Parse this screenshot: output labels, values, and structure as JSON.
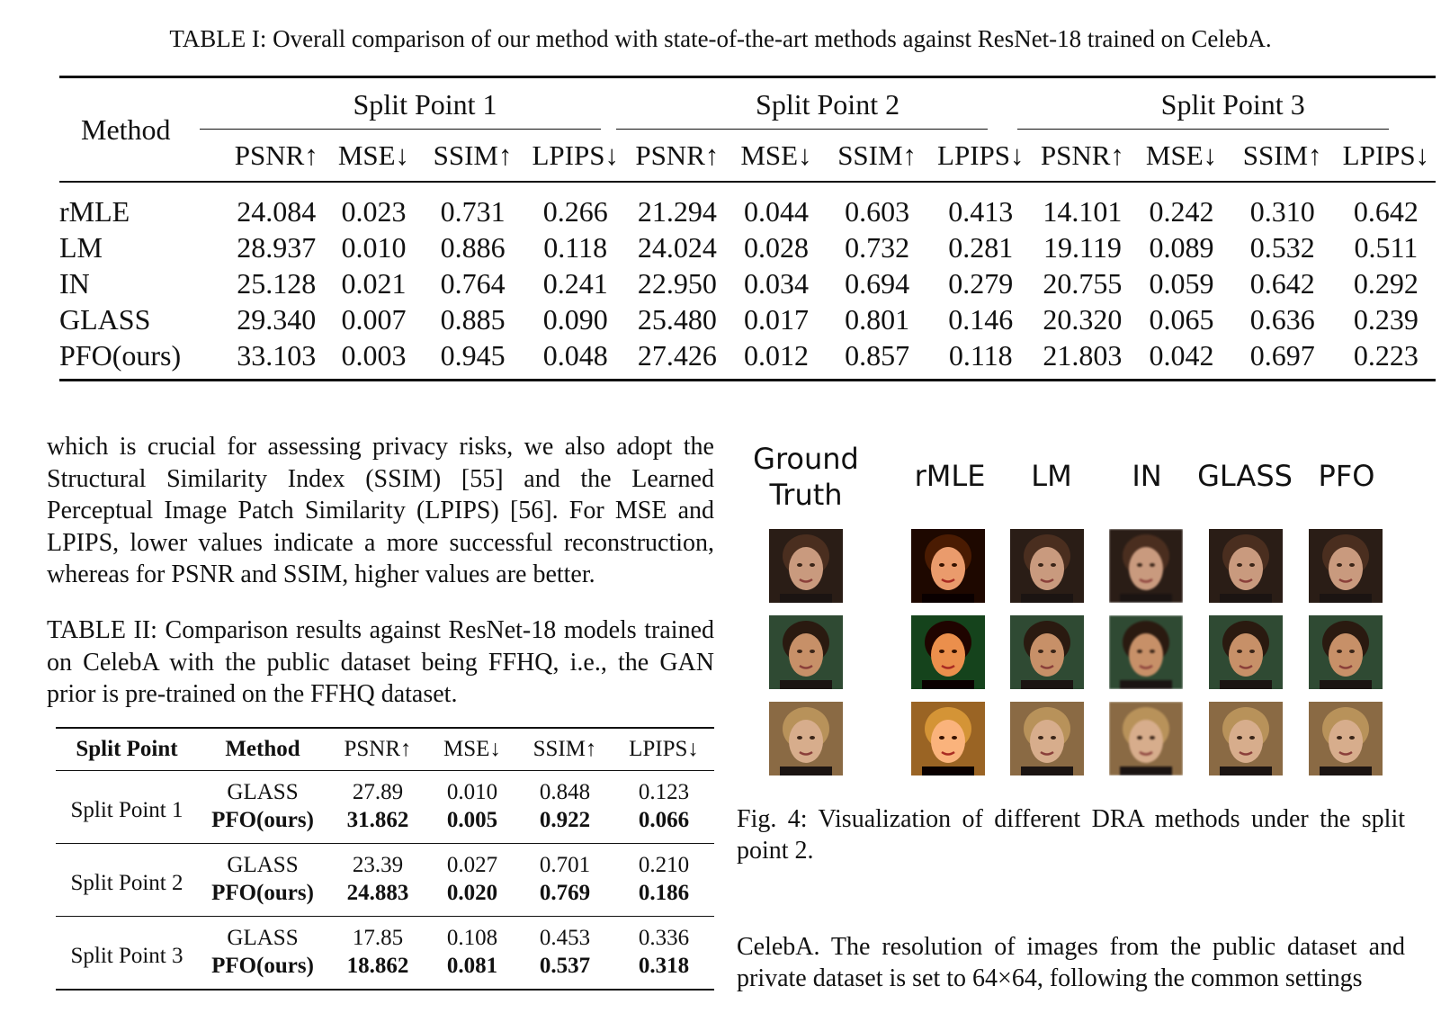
{
  "table1": {
    "caption": "TABLE I: Overall comparison of our method with state-of-the-art methods against ResNet-18 trained on CelebA.",
    "method_header": "Method",
    "groups": [
      "Split Point 1",
      "Split Point 2",
      "Split Point 3"
    ],
    "metrics": [
      "PSNR↑",
      "MSE↓",
      "SSIM↑",
      "LPIPS↓"
    ],
    "rows": [
      {
        "method": "rMLE",
        "values": [
          "24.084",
          "0.023",
          "0.731",
          "0.266",
          "21.294",
          "0.044",
          "0.603",
          "0.413",
          "14.101",
          "0.242",
          "0.310",
          "0.642"
        ]
      },
      {
        "method": "LM",
        "values": [
          "28.937",
          "0.010",
          "0.886",
          "0.118",
          "24.024",
          "0.028",
          "0.732",
          "0.281",
          "19.119",
          "0.089",
          "0.532",
          "0.511"
        ]
      },
      {
        "method": "IN",
        "values": [
          "25.128",
          "0.021",
          "0.764",
          "0.241",
          "22.950",
          "0.034",
          "0.694",
          "0.279",
          "20.755",
          "0.059",
          "0.642",
          "0.292"
        ]
      },
      {
        "method": "GLASS",
        "values": [
          "29.340",
          "0.007",
          "0.885",
          "0.090",
          "25.480",
          "0.017",
          "0.801",
          "0.146",
          "20.320",
          "0.065",
          "0.636",
          "0.239"
        ]
      },
      {
        "method": "PFO(ours)",
        "values": [
          "33.103",
          "0.003",
          "0.945",
          "0.048",
          "27.426",
          "0.012",
          "0.857",
          "0.118",
          "21.803",
          "0.042",
          "0.697",
          "0.223"
        ]
      }
    ]
  },
  "paragraph1": "which is crucial for assessing privacy risks, we also adopt the Structural Similarity Index (SSIM) [55] and the Learned Perceptual Image Patch Similarity (LPIPS) [56]. For MSE and LPIPS, lower values indicate a more successful reconstruction, whereas for PSNR and SSIM, higher values are better.",
  "table2": {
    "caption": "TABLE II: Comparison results against ResNet-18 models trained on CelebA with the public dataset being FFHQ, i.e., the GAN prior is pre-trained on the FFHQ dataset.",
    "headers": [
      "Split Point",
      "Method",
      "PSNR↑",
      "MSE↓",
      "SSIM↑",
      "LPIPS↓"
    ],
    "groups": [
      {
        "split": "Split Point 1",
        "rows": [
          {
            "method": "GLASS",
            "values": [
              "27.89",
              "0.010",
              "0.848",
              "0.123"
            ]
          },
          {
            "method": "PFO(ours)",
            "values": [
              "31.862",
              "0.005",
              "0.922",
              "0.066"
            ]
          }
        ]
      },
      {
        "split": "Split Point 2",
        "rows": [
          {
            "method": "GLASS",
            "values": [
              "23.39",
              "0.027",
              "0.701",
              "0.210"
            ]
          },
          {
            "method": "PFO(ours)",
            "values": [
              "24.883",
              "0.020",
              "0.769",
              "0.186"
            ]
          }
        ]
      },
      {
        "split": "Split Point 3",
        "rows": [
          {
            "method": "GLASS",
            "values": [
              "17.85",
              "0.108",
              "0.453",
              "0.336"
            ]
          },
          {
            "method": "PFO(ours)",
            "values": [
              "18.862",
              "0.081",
              "0.537",
              "0.318"
            ]
          }
        ]
      }
    ]
  },
  "figure": {
    "labels": {
      "ground_truth_line1": "Ground",
      "ground_truth_line2": "Truth",
      "rmle": "rMLE",
      "lm": "LM",
      "in": "IN",
      "glass": "GLASS",
      "pfo": "PFO"
    },
    "caption": "Fig. 4: Visualization of different DRA methods under the split point 2."
  },
  "paragraph2": "CelebA. The resolution of images from the public dataset and private dataset is set to 64×64, following the common settings"
}
